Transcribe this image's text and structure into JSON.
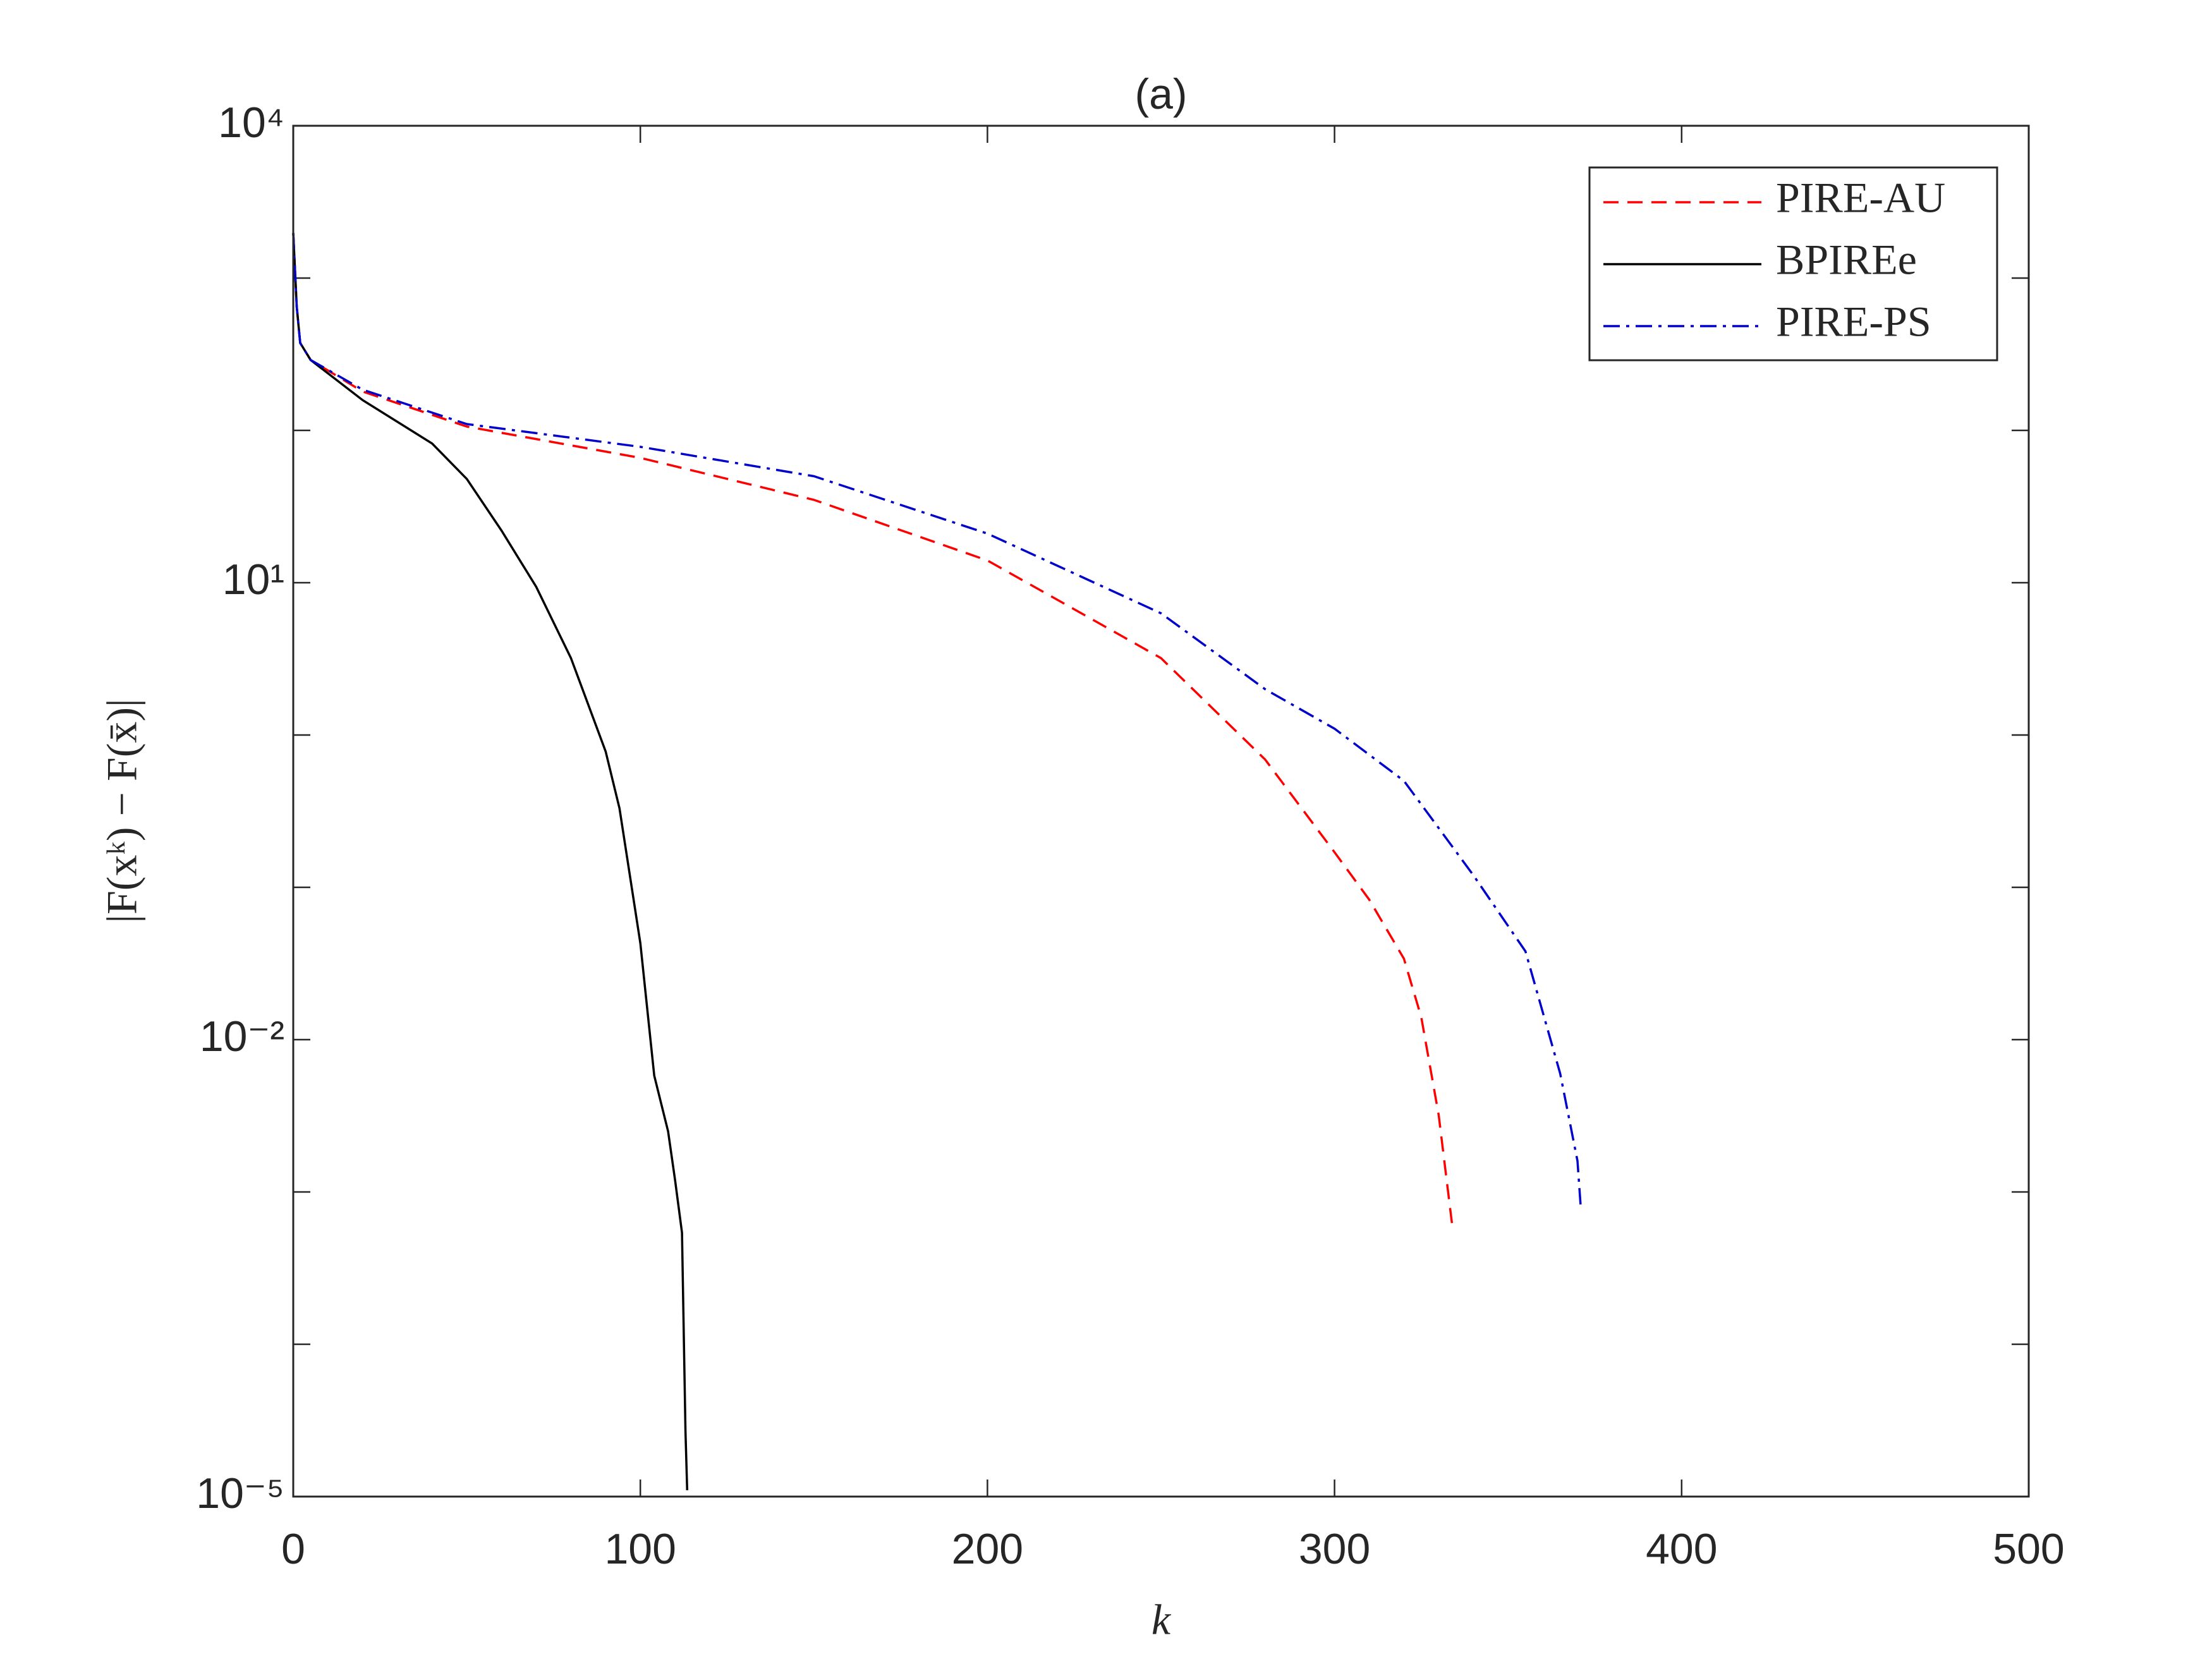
{
  "chart_data": {
    "type": "line",
    "title": "(a)",
    "xlabel": "k",
    "ylabel": "|F(xᵏ) − F(x̄)|",
    "xlim": [
      0,
      500
    ],
    "xticks": [
      0,
      100,
      200,
      300,
      400,
      500
    ],
    "ylim": [
      1e-05,
      10000
    ],
    "yscale": "log",
    "yticks": [
      {
        "value": 1e-05,
        "label": "10⁻⁵"
      },
      {
        "value": 0.01,
        "label": "10⁻²"
      },
      {
        "value": 10,
        "label": "10¹"
      },
      {
        "value": 10000,
        "label": "10⁴"
      }
    ],
    "yticks_minor": [
      0.0001,
      0.001,
      0.1,
      1,
      100,
      1000
    ],
    "legend": "northeast",
    "grid": false,
    "series": [
      {
        "name": "PIRE-AU",
        "color": "#ff0000",
        "dash": "dashed",
        "x": [
          0,
          1,
          2,
          5,
          20,
          50,
          100,
          150,
          200,
          250,
          280,
          300,
          310,
          320,
          325,
          330,
          334
        ],
        "values": [
          1975,
          650,
          375,
          290,
          180,
          106,
          66,
          35,
          14,
          3.2,
          0.69,
          0.17,
          0.083,
          0.034,
          0.014,
          0.0032,
          0.00058
        ]
      },
      {
        "name": "BPIREe",
        "color": "#000000",
        "dash": "solid",
        "x": [
          0,
          1,
          2,
          5,
          20,
          40,
          50,
          60,
          70,
          80,
          90,
          94,
          100,
          104,
          108,
          110,
          112,
          113,
          113.5
        ],
        "values": [
          1975,
          650,
          375,
          290,
          158,
          82,
          48,
          22,
          9.4,
          3.2,
          0.78,
          0.33,
          0.043,
          0.0058,
          0.0025,
          0.0012,
          0.00054,
          2.7e-05,
          1.1e-05
        ]
      },
      {
        "name": "PIRE-PS",
        "color": "#0000cc",
        "dash": "dashdot",
        "x": [
          0,
          1,
          2,
          5,
          20,
          50,
          100,
          150,
          200,
          250,
          280,
          300,
          320,
          340,
          355,
          365,
          370,
          371
        ],
        "values": [
          1975,
          650,
          375,
          290,
          185,
          110,
          78,
          50,
          21,
          6.3,
          2.0,
          1.1,
          0.5,
          0.12,
          0.038,
          0.006,
          0.0016,
          0.00076
        ]
      }
    ]
  }
}
